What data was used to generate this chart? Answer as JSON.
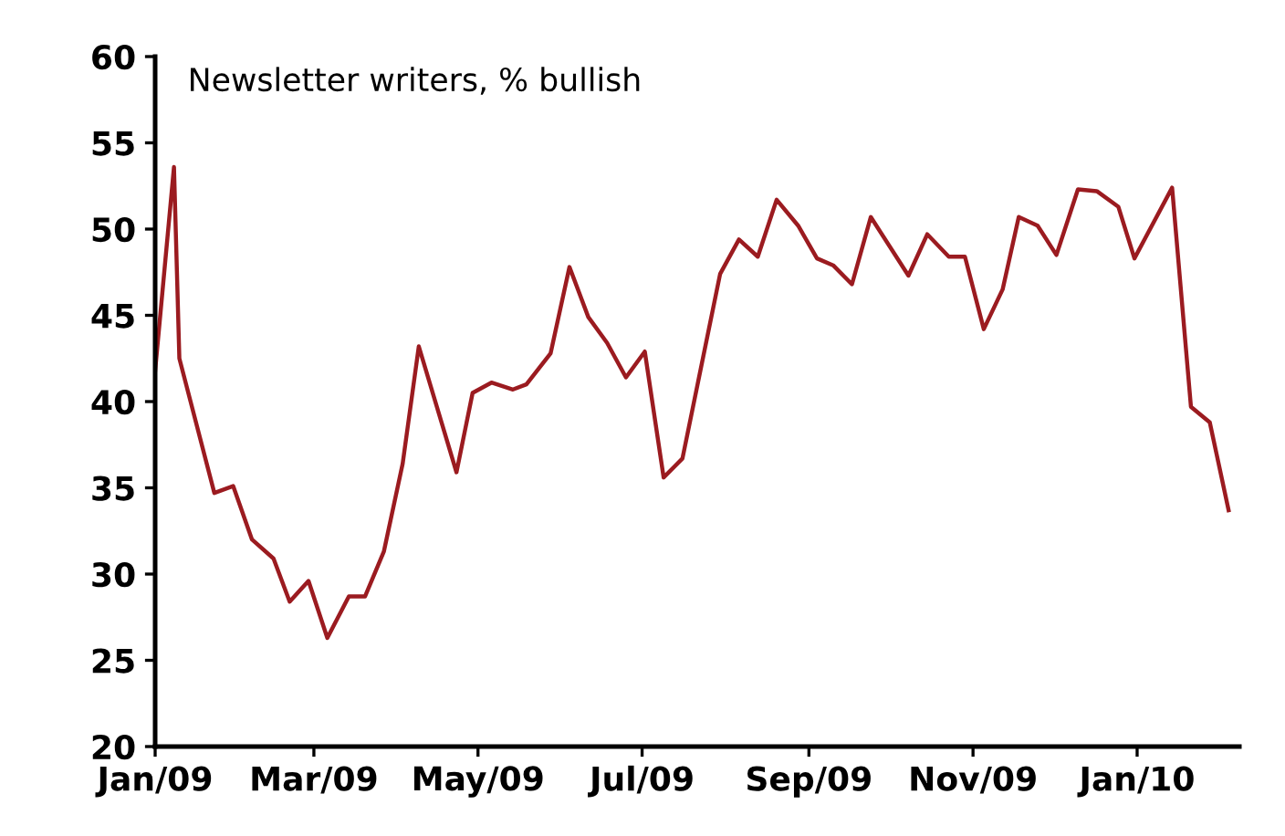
{
  "chart_data": {
    "type": "line",
    "title": "Newsletter writers, % bullish",
    "x": [
      "2009-01-01",
      "2009-01-08",
      "2009-01-10",
      "2009-01-23",
      "2009-01-30",
      "2009-02-06",
      "2009-02-14",
      "2009-02-20",
      "2009-02-27",
      "2009-03-06",
      "2009-03-14",
      "2009-03-20",
      "2009-03-27",
      "2009-04-03",
      "2009-04-09",
      "2009-04-23",
      "2009-04-29",
      "2009-05-06",
      "2009-05-14",
      "2009-05-19",
      "2009-05-28",
      "2009-06-04",
      "2009-06-11",
      "2009-06-18",
      "2009-06-25",
      "2009-07-02",
      "2009-07-09",
      "2009-07-16",
      "2009-07-30",
      "2009-08-06",
      "2009-08-13",
      "2009-08-20",
      "2009-08-28",
      "2009-09-04",
      "2009-09-10",
      "2009-09-17",
      "2009-09-24",
      "2009-10-08",
      "2009-10-15",
      "2009-10-23",
      "2009-10-29",
      "2009-11-05",
      "2009-11-12",
      "2009-11-18",
      "2009-11-25",
      "2009-12-02",
      "2009-12-10",
      "2009-12-17",
      "2009-12-25",
      "2009-12-31",
      "2010-01-14",
      "2010-01-21",
      "2010-01-28",
      "2010-02-04"
    ],
    "series": [
      {
        "color": "#9b1b20",
        "values": [
          41.8,
          53.6,
          42.5,
          34.7,
          35.1,
          32.0,
          30.9,
          28.4,
          29.6,
          26.3,
          28.7,
          28.7,
          31.3,
          36.4,
          43.2,
          35.9,
          40.5,
          41.1,
          40.7,
          41.0,
          42.8,
          47.8,
          44.9,
          43.4,
          41.4,
          42.9,
          35.6,
          36.7,
          47.4,
          49.4,
          48.4,
          51.7,
          50.2,
          48.3,
          47.9,
          46.8,
          50.7,
          47.3,
          49.7,
          48.4,
          48.4,
          44.2,
          46.5,
          50.7,
          50.2,
          48.5,
          52.3,
          52.2,
          51.3,
          48.3,
          52.4,
          39.7,
          38.8,
          33.7
        ]
      }
    ],
    "xlim": [
      "2009-01-01",
      "2010-02-08"
    ],
    "xticks": [
      {
        "value": "2009-01-01",
        "label": "Jan/09"
      },
      {
        "value": "2009-03-01",
        "label": "Mar/09"
      },
      {
        "value": "2009-05-01",
        "label": "May/09"
      },
      {
        "value": "2009-07-01",
        "label": "Jul/09"
      },
      {
        "value": "2009-09-01",
        "label": "Sep/09"
      },
      {
        "value": "2009-11-01",
        "label": "Nov/09"
      },
      {
        "value": "2010-01-01",
        "label": "Jan/10"
      }
    ],
    "ylim": [
      20,
      60
    ],
    "yticks": [
      20,
      25,
      30,
      35,
      40,
      45,
      50,
      55,
      60
    ],
    "marker": "none",
    "line_style": "solid"
  }
}
